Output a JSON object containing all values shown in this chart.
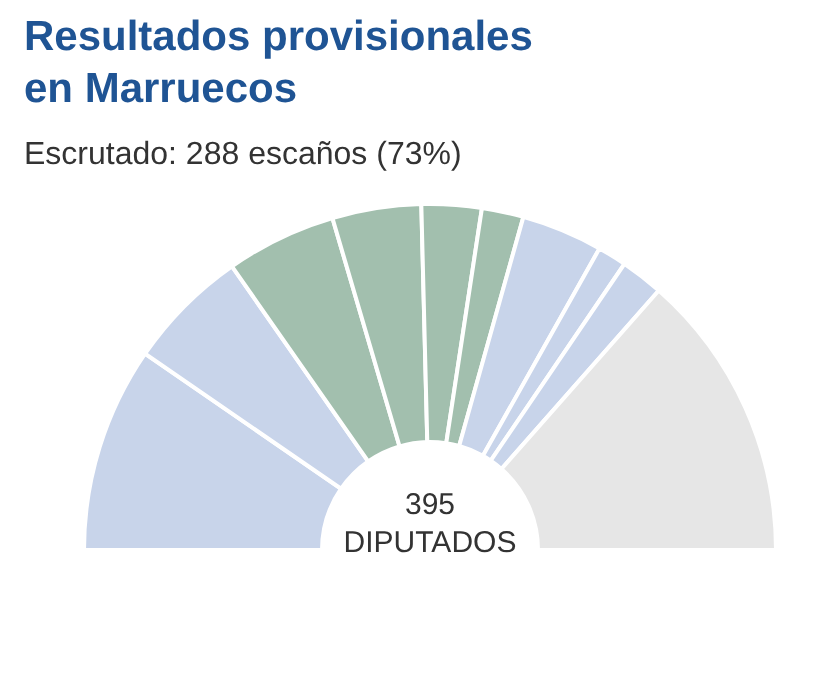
{
  "chart_data": {
    "type": "donut",
    "title": "Resultados provisionales\nen Marruecos",
    "subtitle": "Escrutado: 288 escaños (73%)",
    "annotations": [
      "395\nDIPUTADOS"
    ],
    "categories": [
      null,
      null,
      null,
      null,
      null,
      null,
      null,
      null,
      null,
      null
    ],
    "values": [
      19.2,
      11.4,
      10.3,
      8.3,
      5.6,
      3.9,
      7.6,
      2.7,
      4.0,
      27.0
    ],
    "colors": [
      "#c8d4ea",
      "#c8d4ea",
      "#a2bfae",
      "#a2bfae",
      "#a2bfae",
      "#a2bfae",
      "#c8d4ea",
      "#c8d4ea",
      "#c8d4ea",
      "#e6e6e6"
    ]
  }
}
